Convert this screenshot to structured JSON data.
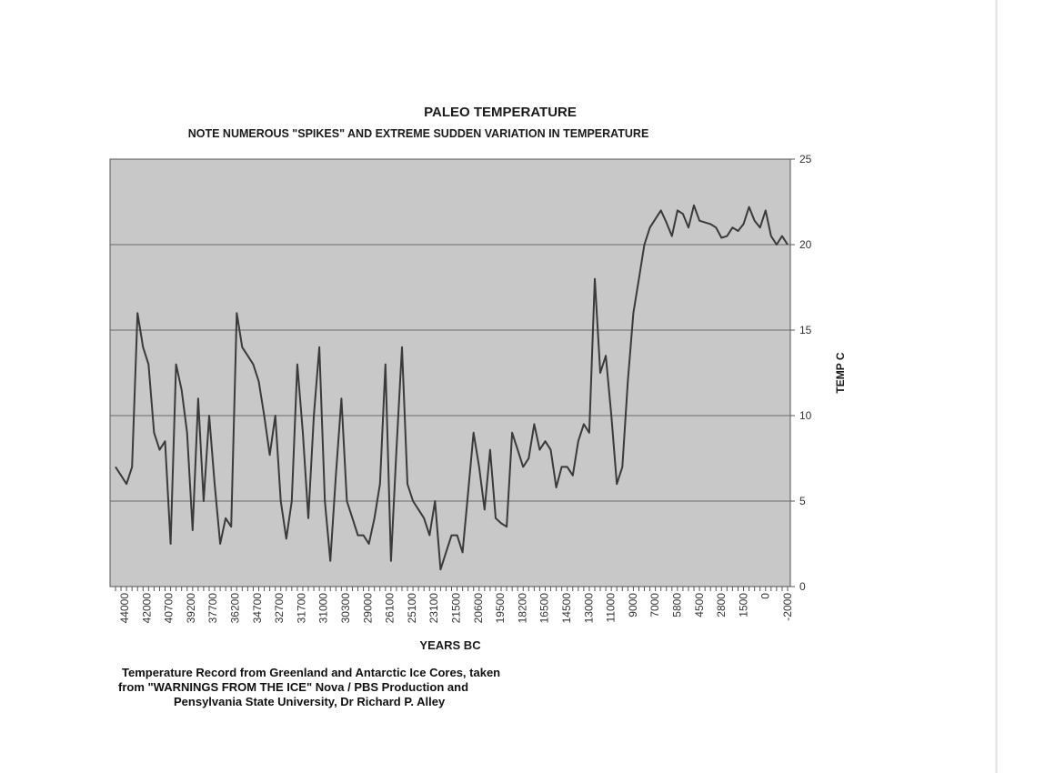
{
  "chart_data": {
    "type": "line",
    "title": "PALEO TEMPERATURE",
    "subtitle": "NOTE NUMEROUS \"SPIKES\" AND EXTREME SUDDEN VARIATION IN TEMPERATURE",
    "xlabel": "YEARS BC",
    "ylabel": "TEMP C",
    "ylim": [
      0,
      25
    ],
    "y_ticks": [
      0,
      5,
      10,
      15,
      20,
      25
    ],
    "grid": true,
    "x_tick_labels": [
      "44000",
      "42000",
      "40700",
      "39200",
      "37700",
      "36200",
      "34700",
      "32700",
      "31700",
      "31000",
      "30300",
      "29000",
      "26100",
      "25100",
      "23100",
      "21500",
      "20600",
      "19500",
      "18200",
      "16500",
      "14500",
      "13000",
      "11000",
      "9000",
      "7000",
      "5800",
      "4500",
      "2800",
      "1500",
      "0",
      "-2000"
    ],
    "series": [
      {
        "name": "Temperature",
        "color": "#3a3a3a",
        "values": [
          7,
          6.5,
          6,
          7,
          16,
          14,
          13,
          9,
          8,
          8.5,
          2.5,
          13,
          11.5,
          9,
          3.3,
          11,
          5,
          10,
          6,
          2.5,
          4,
          3.5,
          16,
          14,
          13.5,
          13,
          12,
          10,
          7.7,
          10,
          5,
          2.8,
          5,
          13,
          9,
          4,
          10,
          14,
          5,
          1.5,
          6.5,
          11,
          5,
          4,
          3,
          3,
          2.5,
          4,
          6,
          13,
          1.5,
          8,
          14,
          6,
          5,
          4.5,
          4,
          3,
          5,
          1,
          2,
          3,
          3,
          2,
          5.5,
          9,
          7,
          4.5,
          8,
          4,
          3.7,
          3.5,
          9,
          8,
          7,
          7.5,
          9.5,
          8,
          8.5,
          8,
          5.8,
          7,
          7,
          6.5,
          8.5,
          9.5,
          9,
          18,
          12.5,
          13.5,
          10,
          6,
          7,
          12,
          16,
          18,
          20,
          21,
          21.5,
          22,
          21.3,
          20.5,
          22,
          21.8,
          21,
          22.3,
          21.4,
          21.3,
          21.2,
          21,
          20.4,
          20.5,
          21,
          20.8,
          21.2,
          22.2,
          21.4,
          21,
          22,
          20.5,
          20,
          20.5,
          20
        ]
      }
    ]
  },
  "caption": {
    "line1": "Temperature Record from Greenland and Antarctic Ice Cores, taken",
    "line2": "from \"WARNINGS FROM THE ICE\" Nova / PBS Production and",
    "line3": "Pensylvania State University, Dr Richard P. Alley"
  }
}
